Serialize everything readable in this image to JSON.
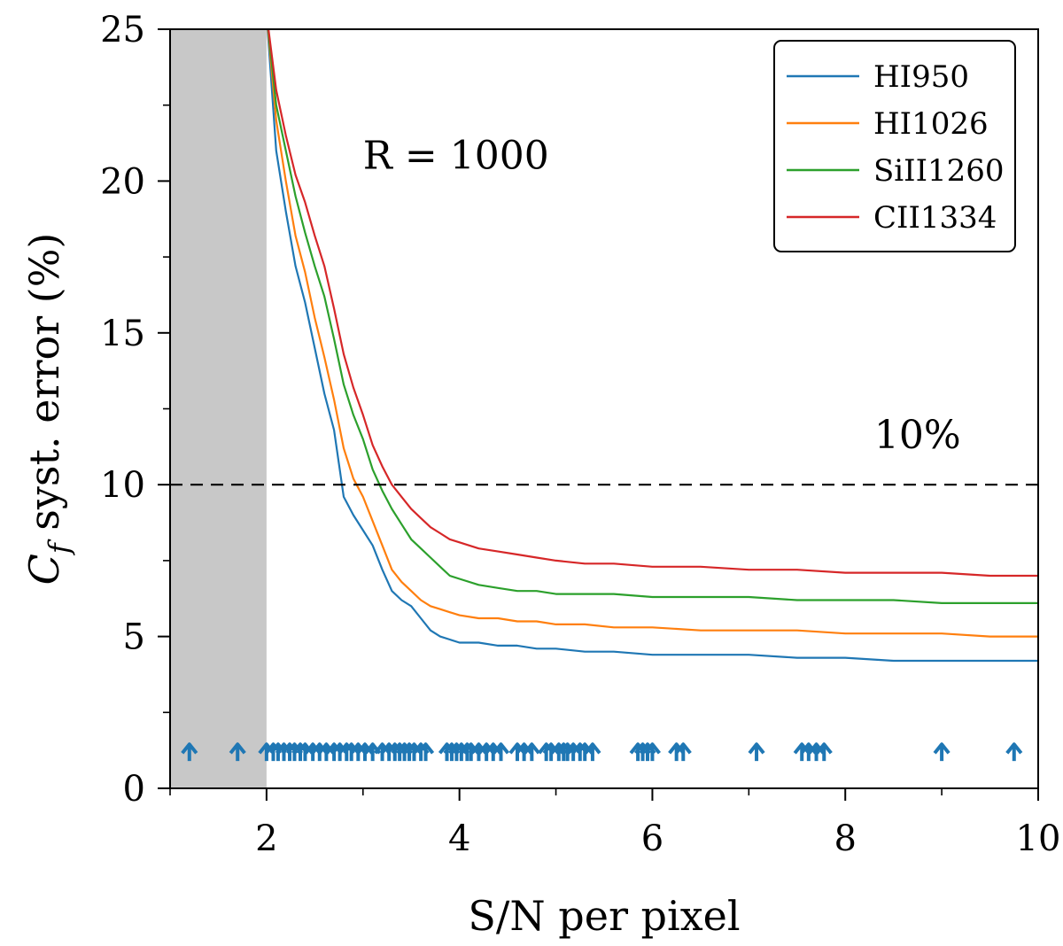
{
  "chart_data": {
    "type": "line",
    "xlabel": "S/N per pixel",
    "ylabel_main": "C",
    "ylabel_sub": "f",
    "ylabel_rest": " syst. error (%)",
    "xlim": [
      1,
      10
    ],
    "ylim": [
      0,
      25
    ],
    "xticks": [
      2,
      4,
      6,
      8,
      10
    ],
    "yticks": [
      0,
      5,
      10,
      15,
      20,
      25
    ],
    "shaded_region": {
      "x_from": 1,
      "x_to": 2,
      "color": "#c8c8c8"
    },
    "threshold": {
      "y": 10,
      "label": "10%"
    },
    "annotation": "R = 1000",
    "legend_position": "top-right",
    "series": [
      {
        "name": "HI950",
        "color": "#1f77b4",
        "x": [
          2.0,
          2.1,
          2.2,
          2.3,
          2.4,
          2.5,
          2.6,
          2.7,
          2.8,
          2.9,
          3.0,
          3.1,
          3.2,
          3.3,
          3.4,
          3.5,
          3.6,
          3.7,
          3.8,
          3.9,
          4.0,
          4.2,
          4.4,
          4.6,
          4.8,
          5.0,
          5.3,
          5.6,
          6.0,
          6.5,
          7.0,
          7.5,
          8.0,
          8.5,
          9.0,
          9.5,
          10.0
        ],
        "values": [
          25.5,
          21.0,
          19.0,
          17.2,
          16.0,
          14.5,
          13.0,
          11.8,
          9.6,
          9.0,
          8.5,
          8.0,
          7.2,
          6.5,
          6.2,
          6.0,
          5.6,
          5.2,
          5.0,
          4.9,
          4.8,
          4.8,
          4.7,
          4.7,
          4.6,
          4.6,
          4.5,
          4.5,
          4.4,
          4.4,
          4.4,
          4.3,
          4.3,
          4.2,
          4.2,
          4.2,
          4.2
        ]
      },
      {
        "name": "HI1026",
        "color": "#ff7f0e",
        "x": [
          2.0,
          2.1,
          2.2,
          2.3,
          2.4,
          2.5,
          2.6,
          2.7,
          2.8,
          2.9,
          3.0,
          3.1,
          3.2,
          3.3,
          3.4,
          3.5,
          3.6,
          3.7,
          3.8,
          3.9,
          4.0,
          4.2,
          4.4,
          4.6,
          4.8,
          5.0,
          5.3,
          5.6,
          6.0,
          6.5,
          7.0,
          7.5,
          8.0,
          8.5,
          9.0,
          9.5,
          10.0
        ],
        "values": [
          25.5,
          22.0,
          20.0,
          18.2,
          17.0,
          15.5,
          14.2,
          12.8,
          11.2,
          10.2,
          9.6,
          8.8,
          8.0,
          7.2,
          6.8,
          6.5,
          6.2,
          6.0,
          5.9,
          5.8,
          5.7,
          5.6,
          5.6,
          5.5,
          5.5,
          5.4,
          5.4,
          5.3,
          5.3,
          5.2,
          5.2,
          5.2,
          5.1,
          5.1,
          5.1,
          5.0,
          5.0
        ]
      },
      {
        "name": "SiII1260",
        "color": "#2ca02c",
        "x": [
          2.0,
          2.1,
          2.2,
          2.3,
          2.4,
          2.5,
          2.6,
          2.7,
          2.8,
          2.9,
          3.0,
          3.1,
          3.2,
          3.3,
          3.4,
          3.5,
          3.6,
          3.7,
          3.8,
          3.9,
          4.0,
          4.2,
          4.4,
          4.6,
          4.8,
          5.0,
          5.3,
          5.6,
          6.0,
          6.5,
          7.0,
          7.5,
          8.0,
          8.5,
          9.0,
          9.5,
          10.0
        ],
        "values": [
          25.5,
          22.5,
          21.0,
          19.5,
          18.3,
          17.2,
          16.2,
          14.8,
          13.3,
          12.3,
          11.5,
          10.5,
          9.8,
          9.2,
          8.7,
          8.2,
          7.9,
          7.6,
          7.3,
          7.0,
          6.9,
          6.7,
          6.6,
          6.5,
          6.5,
          6.4,
          6.4,
          6.4,
          6.3,
          6.3,
          6.3,
          6.2,
          6.2,
          6.2,
          6.1,
          6.1,
          6.1
        ]
      },
      {
        "name": "CII1334",
        "color": "#d62728",
        "x": [
          2.0,
          2.1,
          2.2,
          2.3,
          2.4,
          2.5,
          2.6,
          2.7,
          2.8,
          2.9,
          3.0,
          3.1,
          3.2,
          3.3,
          3.4,
          3.5,
          3.6,
          3.7,
          3.8,
          3.9,
          4.0,
          4.2,
          4.4,
          4.6,
          4.8,
          5.0,
          5.3,
          5.6,
          6.0,
          6.5,
          7.0,
          7.5,
          8.0,
          8.5,
          9.0,
          9.5,
          10.0
        ],
        "values": [
          25.5,
          23.0,
          21.5,
          20.2,
          19.3,
          18.2,
          17.2,
          15.8,
          14.3,
          13.2,
          12.3,
          11.3,
          10.6,
          10.0,
          9.6,
          9.2,
          8.9,
          8.6,
          8.4,
          8.2,
          8.1,
          7.9,
          7.8,
          7.7,
          7.6,
          7.5,
          7.4,
          7.4,
          7.3,
          7.3,
          7.2,
          7.2,
          7.1,
          7.1,
          7.1,
          7.0,
          7.0
        ]
      }
    ],
    "arrow_markers": {
      "color": "#1f77b4",
      "x": [
        1.2,
        1.7,
        2.0,
        2.07,
        2.12,
        2.18,
        2.24,
        2.29,
        2.35,
        2.4,
        2.48,
        2.55,
        2.62,
        2.7,
        2.76,
        2.83,
        2.88,
        2.95,
        3.02,
        3.1,
        3.2,
        3.27,
        3.33,
        3.38,
        3.43,
        3.48,
        3.53,
        3.6,
        3.65,
        3.87,
        3.92,
        3.97,
        4.02,
        4.08,
        4.12,
        4.2,
        4.28,
        4.35,
        4.43,
        4.6,
        4.67,
        4.75,
        4.9,
        4.95,
        5.03,
        5.08,
        5.12,
        5.18,
        5.25,
        5.3,
        5.38,
        5.85,
        5.9,
        5.95,
        6.0,
        6.25,
        6.32,
        7.08,
        7.55,
        7.62,
        7.7,
        7.78,
        9.0,
        9.75
      ]
    }
  },
  "legend": {
    "items": [
      {
        "label": "HI950",
        "color": "#1f77b4"
      },
      {
        "label": "HI1026",
        "color": "#ff7f0e"
      },
      {
        "label": "SiII1260",
        "color": "#2ca02c"
      },
      {
        "label": "CII1334",
        "color": "#d62728"
      }
    ]
  }
}
